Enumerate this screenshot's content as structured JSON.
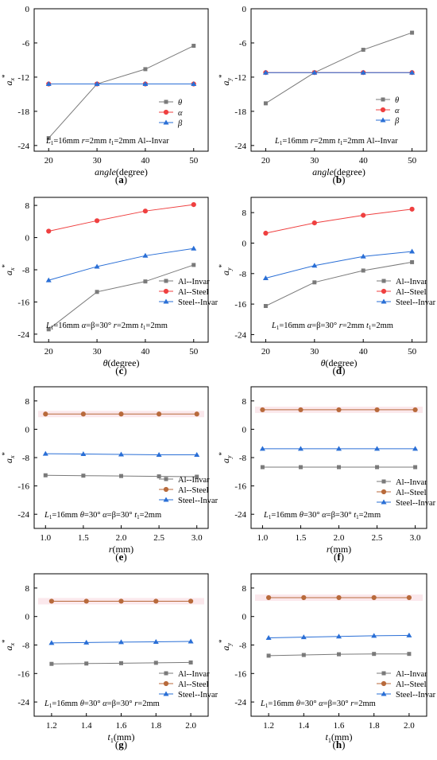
{
  "figure": {
    "panels": [
      {
        "letter": "a",
        "caption_open": "(",
        "caption_close": ")"
      },
      {
        "letter": "b",
        "caption_open": "(",
        "caption_close": ")"
      },
      {
        "letter": "c",
        "caption_open": "(",
        "caption_close": ")"
      },
      {
        "letter": "d",
        "caption_open": "(",
        "caption_close": ")"
      },
      {
        "letter": "e",
        "caption_open": "(",
        "caption_close": ")"
      },
      {
        "letter": "f",
        "caption_open": "(",
        "caption_close": ")"
      },
      {
        "letter": "g",
        "caption_open": "(",
        "caption_close": ")"
      },
      {
        "letter": "h",
        "caption_open": "(",
        "caption_close": ")"
      }
    ]
  },
  "chart_data": [
    {
      "panel": "a",
      "type": "line",
      "x": [
        20,
        30,
        40,
        50
      ],
      "xlim": [
        17,
        53
      ],
      "xticks": [
        "20",
        "30",
        "40",
        "50"
      ],
      "xlabel": "angle(degree)",
      "ylabel": "a_x*",
      "ylim": [
        -25,
        0
      ],
      "yticks": [
        0,
        -6,
        -12,
        -18,
        -24
      ],
      "legend_placement": "center-right",
      "annotation": "L1=16mm r=2mm t1=2mm Al--Invar",
      "series": [
        {
          "name": "θ",
          "marker": "square",
          "color": "#7a7a7a",
          "values": [
            -22.7,
            -13.2,
            -10.6,
            -6.5
          ]
        },
        {
          "name": "α",
          "marker": "circle",
          "color": "#ef4040",
          "values": [
            -13.2,
            -13.2,
            -13.2,
            -13.2
          ]
        },
        {
          "name": "β",
          "marker": "triangle",
          "color": "#2a6fd6",
          "values": [
            -13.2,
            -13.2,
            -13.2,
            -13.2
          ]
        }
      ]
    },
    {
      "panel": "b",
      "type": "line",
      "x": [
        20,
        30,
        40,
        50
      ],
      "xlim": [
        17,
        53
      ],
      "xticks": [
        "20",
        "30",
        "40",
        "50"
      ],
      "xlabel": "angle(degree)",
      "ylabel": "a_y*",
      "ylim": [
        -25,
        0
      ],
      "yticks": [
        0,
        -6,
        -12,
        -18,
        -24
      ],
      "legend_placement": "center-right",
      "annotation": "L1=16mm r=2mm t1=2mm Al--Invar",
      "series": [
        {
          "name": "θ",
          "marker": "square",
          "color": "#7a7a7a",
          "values": [
            -16.6,
            -11.2,
            -7.2,
            -4.2
          ]
        },
        {
          "name": "α",
          "marker": "circle",
          "color": "#ef4040",
          "values": [
            -11.2,
            -11.2,
            -11.2,
            -11.2
          ]
        },
        {
          "name": "β",
          "marker": "triangle",
          "color": "#2a6fd6",
          "values": [
            -11.2,
            -11.2,
            -11.2,
            -11.2
          ]
        }
      ]
    },
    {
      "panel": "c",
      "type": "line",
      "x": [
        20,
        30,
        40,
        50
      ],
      "xlim": [
        17,
        53
      ],
      "xticks": [
        "20",
        "30",
        "40",
        "50"
      ],
      "xlabel": "θ(degree)",
      "ylabel": "a_x*",
      "ylim": [
        -26,
        10
      ],
      "yticks": [
        8,
        0,
        -8,
        -16,
        -24
      ],
      "legend_placement": "center-right",
      "annotation": "L1=16mm α=β=30° r=2mm t1=2mm",
      "series": [
        {
          "name": "Al--Invar",
          "marker": "square",
          "color": "#7a7a7a",
          "values": [
            -22.8,
            -13.5,
            -10.9,
            -6.8
          ]
        },
        {
          "name": "Al--Steel",
          "marker": "circle",
          "color": "#ef4040",
          "values": [
            1.6,
            4.2,
            6.6,
            8.2
          ]
        },
        {
          "name": "Steel--Invar",
          "marker": "triangle",
          "color": "#2a6fd6",
          "values": [
            -10.6,
            -7.2,
            -4.5,
            -2.7
          ]
        }
      ]
    },
    {
      "panel": "d",
      "type": "line",
      "x": [
        20,
        30,
        40,
        50
      ],
      "xlim": [
        17,
        53
      ],
      "xticks": [
        "20",
        "30",
        "40",
        "50"
      ],
      "xlabel": "θ(degree)",
      "ylabel": "a_y*",
      "ylim": [
        -26,
        12
      ],
      "yticks": [
        8,
        0,
        -8,
        -16,
        -24
      ],
      "legend_placement": "center-right",
      "annotation": "L1=16mm α=β=30° r=2mm t1=2mm",
      "series": [
        {
          "name": "Al--Invar",
          "marker": "square",
          "color": "#7a7a7a",
          "values": [
            -16.5,
            -10.3,
            -7.2,
            -5.0
          ]
        },
        {
          "name": "Al--Steel",
          "marker": "circle",
          "color": "#ef4040",
          "values": [
            2.6,
            5.3,
            7.3,
            8.9
          ]
        },
        {
          "name": "Steel--Invar",
          "marker": "triangle",
          "color": "#2a6fd6",
          "values": [
            -9.2,
            -5.9,
            -3.5,
            -2.2
          ]
        }
      ]
    },
    {
      "panel": "e",
      "type": "line",
      "x": [
        1.0,
        1.5,
        2.0,
        2.5,
        3.0
      ],
      "xlim": [
        0.85,
        3.15
      ],
      "xticks": [
        "1.0",
        "1.5",
        "2.0",
        "2.5",
        "3.0"
      ],
      "xlabel": "r(mm)",
      "ylabel": "a_x*",
      "ylim": [
        -28,
        12
      ],
      "yticks": [
        8,
        0,
        -8,
        -16,
        -24
      ],
      "legend_placement": "lower-right",
      "annotation": "L1=16mm θ=30° α=β=30° t1=2mm",
      "series": [
        {
          "name": "Al--Invar",
          "marker": "square",
          "color": "#7a7a7a",
          "values": [
            -13.0,
            -13.1,
            -13.2,
            -13.3,
            -13.4
          ]
        },
        {
          "name": "Al--Steel",
          "marker": "circle",
          "color": "#b86a3b",
          "values": [
            4.3,
            4.3,
            4.3,
            4.3,
            4.3
          ]
        },
        {
          "name": "Steel--Invar",
          "marker": "triangle",
          "color": "#2a6fd6",
          "values": [
            -6.9,
            -7.0,
            -7.1,
            -7.2,
            -7.2
          ]
        }
      ]
    },
    {
      "panel": "f",
      "type": "line",
      "x": [
        1.0,
        1.5,
        2.0,
        2.5,
        3.0
      ],
      "xlim": [
        0.85,
        3.15
      ],
      "xticks": [
        "1.0",
        "1.5",
        "2.0",
        "2.5",
        "3.0"
      ],
      "xlabel": "r(mm)",
      "ylabel": "a_y*",
      "ylim": [
        -28,
        12
      ],
      "yticks": [
        8,
        0,
        -8,
        -16,
        -24
      ],
      "legend_placement": "lower-right",
      "annotation": "L1=16mm θ=30° α=β=30° t1=2mm",
      "series": [
        {
          "name": "Al--Invar",
          "marker": "square",
          "color": "#7a7a7a",
          "values": [
            -10.7,
            -10.7,
            -10.7,
            -10.7,
            -10.7
          ]
        },
        {
          "name": "Al--Steel",
          "marker": "circle",
          "color": "#b86a3b",
          "values": [
            5.5,
            5.5,
            5.5,
            5.5,
            5.5
          ]
        },
        {
          "name": "Steel--Invar",
          "marker": "triangle",
          "color": "#2a6fd6",
          "values": [
            -5.5,
            -5.5,
            -5.5,
            -5.5,
            -5.5
          ]
        }
      ]
    },
    {
      "panel": "g",
      "type": "line",
      "x": [
        1.2,
        1.4,
        1.6,
        1.8,
        2.0
      ],
      "xlim": [
        1.1,
        2.1
      ],
      "xticks": [
        "1.2",
        "1.4",
        "1.6",
        "1.8",
        "2.0"
      ],
      "xlabel": "t1(mm)",
      "ylabel": "a_x*",
      "ylim": [
        -28,
        12
      ],
      "yticks": [
        8,
        0,
        -8,
        -16,
        -24
      ],
      "legend_placement": "lower-right",
      "annotation": "L1=16mm θ=30° α=β=30° r=2mm",
      "series": [
        {
          "name": "Al--Invar",
          "marker": "square",
          "color": "#7a7a7a",
          "values": [
            -13.3,
            -13.2,
            -13.1,
            -13.0,
            -12.9
          ]
        },
        {
          "name": "Al--Steel",
          "marker": "circle",
          "color": "#b86a3b",
          "values": [
            4.3,
            4.3,
            4.3,
            4.3,
            4.3
          ]
        },
        {
          "name": "Steel--Invar",
          "marker": "triangle",
          "color": "#2a6fd6",
          "values": [
            -7.4,
            -7.3,
            -7.2,
            -7.1,
            -7.0
          ]
        }
      ]
    },
    {
      "panel": "h",
      "type": "line",
      "x": [
        1.2,
        1.4,
        1.6,
        1.8,
        2.0
      ],
      "xlim": [
        1.1,
        2.1
      ],
      "xticks": [
        "1.2",
        "1.4",
        "1.6",
        "1.8",
        "2.0"
      ],
      "xlabel": "t1(mm)",
      "ylabel": "a_y*",
      "ylim": [
        -28,
        12
      ],
      "yticks": [
        8,
        0,
        -8,
        -16,
        -24
      ],
      "legend_placement": "lower-right",
      "annotation": "L1=16mm θ=30° α=β=30° r=2mm",
      "series": [
        {
          "name": "Al--Invar",
          "marker": "square",
          "color": "#7a7a7a",
          "values": [
            -11.0,
            -10.8,
            -10.6,
            -10.5,
            -10.5
          ]
        },
        {
          "name": "Al--Steel",
          "marker": "circle",
          "color": "#b86a3b",
          "values": [
            5.3,
            5.3,
            5.3,
            5.3,
            5.3
          ]
        },
        {
          "name": "Steel--Invar",
          "marker": "triangle",
          "color": "#2a6fd6",
          "values": [
            -6.0,
            -5.8,
            -5.6,
            -5.4,
            -5.3
          ]
        }
      ]
    }
  ]
}
